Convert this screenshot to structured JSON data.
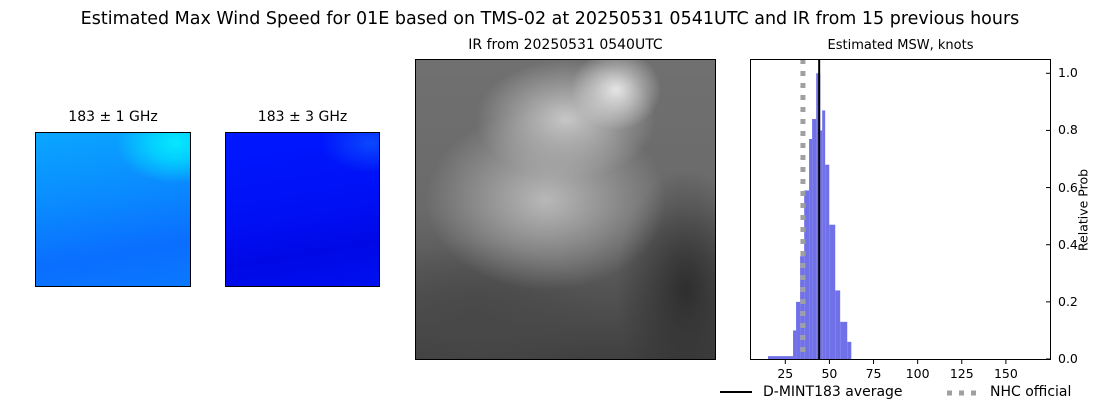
{
  "title": "Estimated Max Wind Speed for 01E based on TMS-02 at 20250531 0541UTC and IR from 15 previous hours",
  "panels": {
    "mw1_title": "183 ± 1 GHz",
    "mw2_title": "183 ± 3 GHz",
    "ir_title": "IR from 20250531 0540UTC"
  },
  "chart_data": {
    "type": "bar",
    "title": "Estimated MSW, knots",
    "xlabel": "",
    "ylabel": "Relative Prob",
    "xlim": [
      5,
      175
    ],
    "ylim": [
      0,
      1.05
    ],
    "xticks": [
      "25",
      "50",
      "75",
      "100",
      "125",
      "150"
    ],
    "xtick_values": [
      25,
      50,
      75,
      100,
      125,
      150
    ],
    "yticks": [
      "0.0",
      "0.2",
      "0.4",
      "0.6",
      "0.8",
      "1.0"
    ],
    "ytick_values": [
      0,
      0.2,
      0.4,
      0.6,
      0.8,
      1.0
    ],
    "bar_color": "#7070e8",
    "bins": [
      {
        "left": 15.2,
        "right": 29.4,
        "value": 0.01
      },
      {
        "left": 29.4,
        "right": 31.1,
        "value": 0.1
      },
      {
        "left": 31.1,
        "right": 33.4,
        "value": 0.2
      },
      {
        "left": 33.4,
        "right": 35.7,
        "value": 0.36
      },
      {
        "left": 35.7,
        "right": 38.5,
        "value": 0.59
      },
      {
        "left": 38.5,
        "right": 40.2,
        "value": 0.77
      },
      {
        "left": 40.2,
        "right": 42.5,
        "value": 0.84
      },
      {
        "left": 42.5,
        "right": 44.8,
        "value": 1.0
      },
      {
        "left": 44.8,
        "right": 45.9,
        "value": 0.8
      },
      {
        "left": 45.9,
        "right": 47.6,
        "value": 0.87
      },
      {
        "left": 47.6,
        "right": 49.9,
        "value": 0.68
      },
      {
        "left": 49.9,
        "right": 53.3,
        "value": 0.47
      },
      {
        "left": 53.3,
        "right": 56.1,
        "value": 0.24
      },
      {
        "left": 56.1,
        "right": 60.1,
        "value": 0.13
      },
      {
        "left": 60.1,
        "right": 62.4,
        "value": 0.06
      }
    ],
    "lines": [
      {
        "name": "D-MINT183 average",
        "x": 44.2,
        "color": "#000000",
        "style": "solid"
      },
      {
        "name": "NHC official",
        "x": 35,
        "color": "#a0a0a0",
        "style": "dotted"
      }
    ],
    "legend": "bottom-right"
  }
}
